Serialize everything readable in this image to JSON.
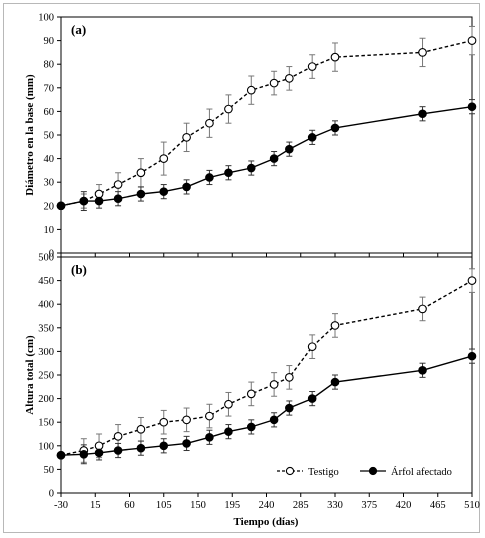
{
  "chart_data": {
    "type": "line",
    "xlabel": "Tiempo (días)",
    "x_ticks": [
      -30,
      15,
      60,
      105,
      150,
      195,
      240,
      285,
      330,
      375,
      420,
      465,
      510
    ],
    "xlim": [
      -30,
      510
    ],
    "panels": [
      {
        "panel_label": "(a)",
        "ylabel": "Diámetro en la base (mm)",
        "ylim": [
          0,
          100
        ],
        "y_ticks": [
          0,
          10,
          20,
          30,
          40,
          50,
          60,
          70,
          80,
          90,
          100
        ],
        "series": [
          {
            "name": "Testigo",
            "style": "dashed-open",
            "x": [
              -30,
              0,
              20,
              45,
              75,
              105,
              135,
              165,
              190,
              220,
              250,
              270,
              300,
              330,
              445,
              510
            ],
            "y": [
              20,
              22,
              25,
              29,
              34,
              40,
              49,
              55,
              61,
              69,
              72,
              74,
              79,
              83,
              85,
              90
            ],
            "err": [
              0,
              3,
              4,
              5,
              6,
              7,
              6,
              6,
              6,
              6,
              5,
              5,
              5,
              6,
              6,
              6
            ]
          },
          {
            "name": "Árfol afectado",
            "style": "solid-filled",
            "x": [
              -30,
              0,
              20,
              45,
              75,
              105,
              135,
              165,
              190,
              220,
              250,
              270,
              300,
              330,
              445,
              510
            ],
            "y": [
              20,
              22,
              22,
              23,
              25,
              26,
              28,
              32,
              34,
              36,
              40,
              44,
              49,
              53,
              59,
              62
            ],
            "err": [
              0,
              4,
              3,
              3,
              3,
              3,
              3,
              3,
              3,
              3,
              3,
              3,
              3,
              3,
              3,
              3
            ]
          }
        ]
      },
      {
        "panel_label": "(b)",
        "ylabel": "Altura total (cm)",
        "ylim": [
          0,
          500
        ],
        "y_ticks": [
          0,
          50,
          100,
          150,
          200,
          250,
          300,
          350,
          400,
          450,
          500
        ],
        "series": [
          {
            "name": "Testigo",
            "style": "dashed-open",
            "x": [
              -30,
              0,
              20,
              45,
              75,
              105,
              135,
              165,
              190,
              220,
              250,
              270,
              300,
              330,
              445,
              510
            ],
            "y": [
              80,
              90,
              100,
              120,
              135,
              150,
              155,
              163,
              188,
              210,
              230,
              245,
              310,
              355,
              390,
              450
            ],
            "err": [
              0,
              25,
              25,
              25,
              25,
              25,
              25,
              25,
              25,
              25,
              25,
              25,
              25,
              25,
              25,
              25
            ]
          },
          {
            "name": "Árfol afectado",
            "style": "solid-filled",
            "x": [
              -30,
              0,
              20,
              45,
              75,
              105,
              135,
              165,
              190,
              220,
              250,
              270,
              300,
              330,
              445,
              510
            ],
            "y": [
              80,
              82,
              85,
              90,
              95,
              100,
              105,
              118,
              130,
              140,
              155,
              180,
              200,
              235,
              260,
              290
            ],
            "err": [
              0,
              20,
              15,
              15,
              15,
              15,
              15,
              15,
              15,
              15,
              15,
              15,
              15,
              15,
              15,
              15
            ]
          }
        ]
      }
    ],
    "legend": {
      "position": "bottom-right of panel (b)",
      "entries": [
        "Testigo",
        "Árfol afectado"
      ]
    },
    "grid": false
  }
}
